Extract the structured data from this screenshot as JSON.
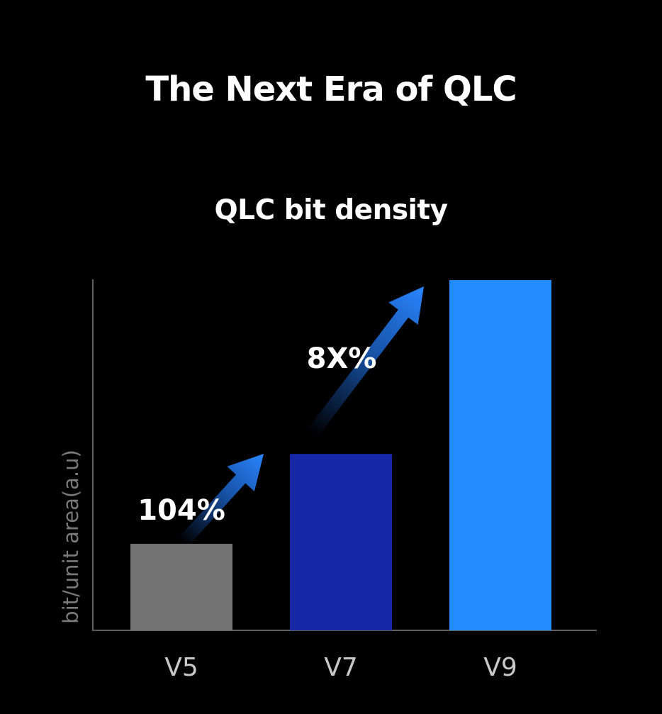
{
  "chart_data": {
    "type": "bar",
    "title": "The Next Era of QLC",
    "subtitle": "QLC bit density",
    "ylabel": "bit/unit area(a.u)",
    "xlabel": "",
    "categories": [
      "V5",
      "V7",
      "V9"
    ],
    "values": [
      1.0,
      2.04,
      4.05
    ],
    "ylim": [
      0,
      4.05
    ],
    "colors": [
      "#737373",
      "#1628a8",
      "#228bff"
    ],
    "annotations": [
      {
        "label": "104%",
        "from": "V5",
        "to": "V7"
      },
      {
        "label": "8X%",
        "from": "V7",
        "to": "V9"
      }
    ],
    "grid": false,
    "legend": "none"
  }
}
